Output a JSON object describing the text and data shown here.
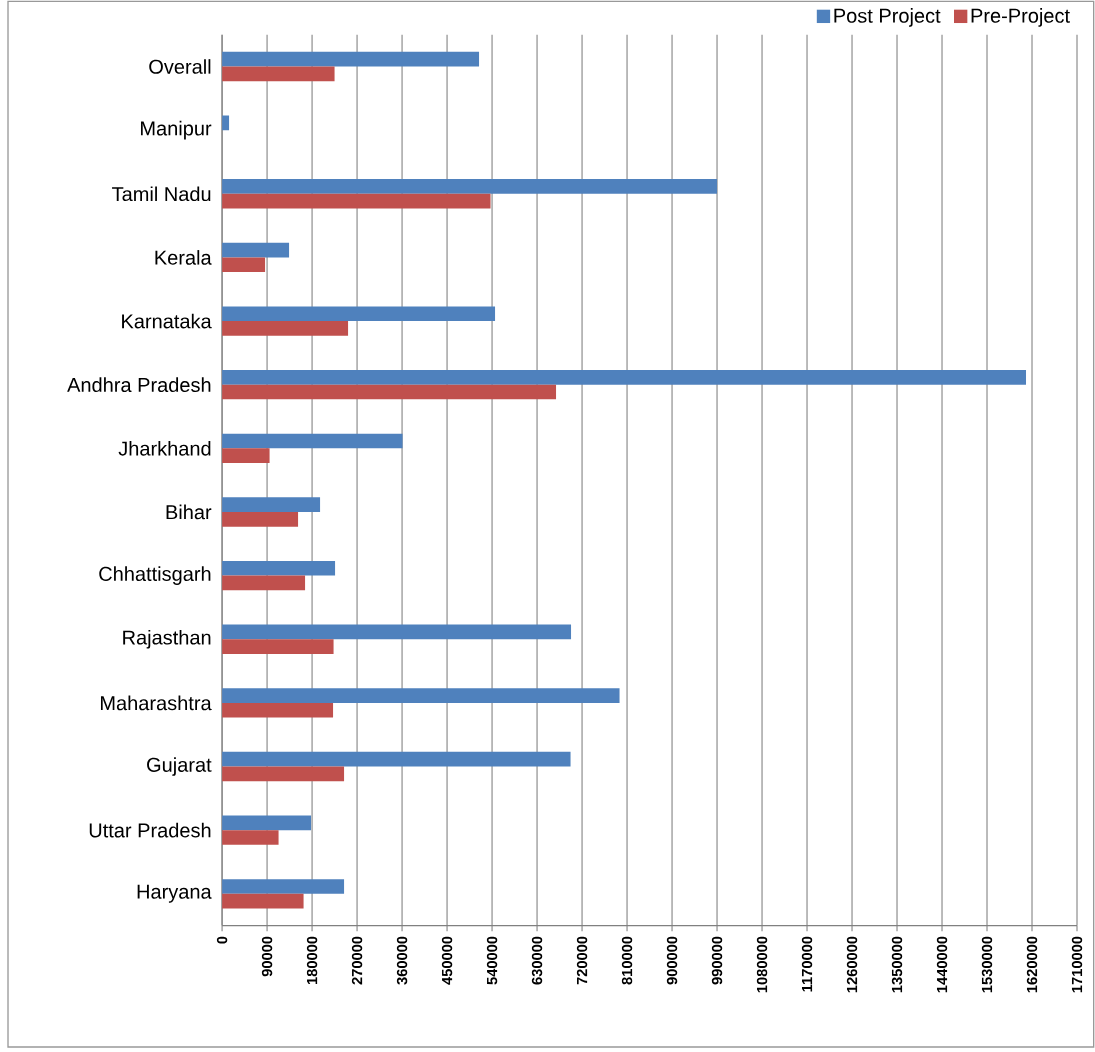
{
  "chart_data": {
    "type": "bar",
    "orientation": "horizontal",
    "categories": [
      "Overall",
      "Manipur",
      "Tamil Nadu",
      "Kerala",
      "Karnataka",
      "Andhra Pradesh",
      "Jharkhand",
      "Bihar",
      "Chhattisgarh",
      "Rajasthan",
      "Maharashtra",
      "Gujarat",
      "Uttar Pradesh",
      "Haryana"
    ],
    "series": [
      {
        "name": "Post Project",
        "color": "#4f81bd",
        "values": [
          514000,
          14000,
          990000,
          134000,
          546000,
          1608000,
          361000,
          196000,
          226000,
          698000,
          795000,
          697000,
          178000,
          244000
        ]
      },
      {
        "name": "Pre-Project",
        "color": "#c0504d",
        "values": [
          225000,
          null,
          537000,
          86000,
          252000,
          668000,
          95000,
          152000,
          166000,
          223000,
          222000,
          244000,
          113000,
          163000
        ]
      }
    ],
    "xlim": [
      0,
      1710000
    ],
    "xticks": [
      0,
      90000,
      180000,
      270000,
      360000,
      450000,
      540000,
      630000,
      720000,
      810000,
      900000,
      990000,
      1080000,
      1170000,
      1260000,
      1350000,
      1440000,
      1530000,
      1620000,
      1710000
    ],
    "grid": "x",
    "legend": "top right"
  }
}
